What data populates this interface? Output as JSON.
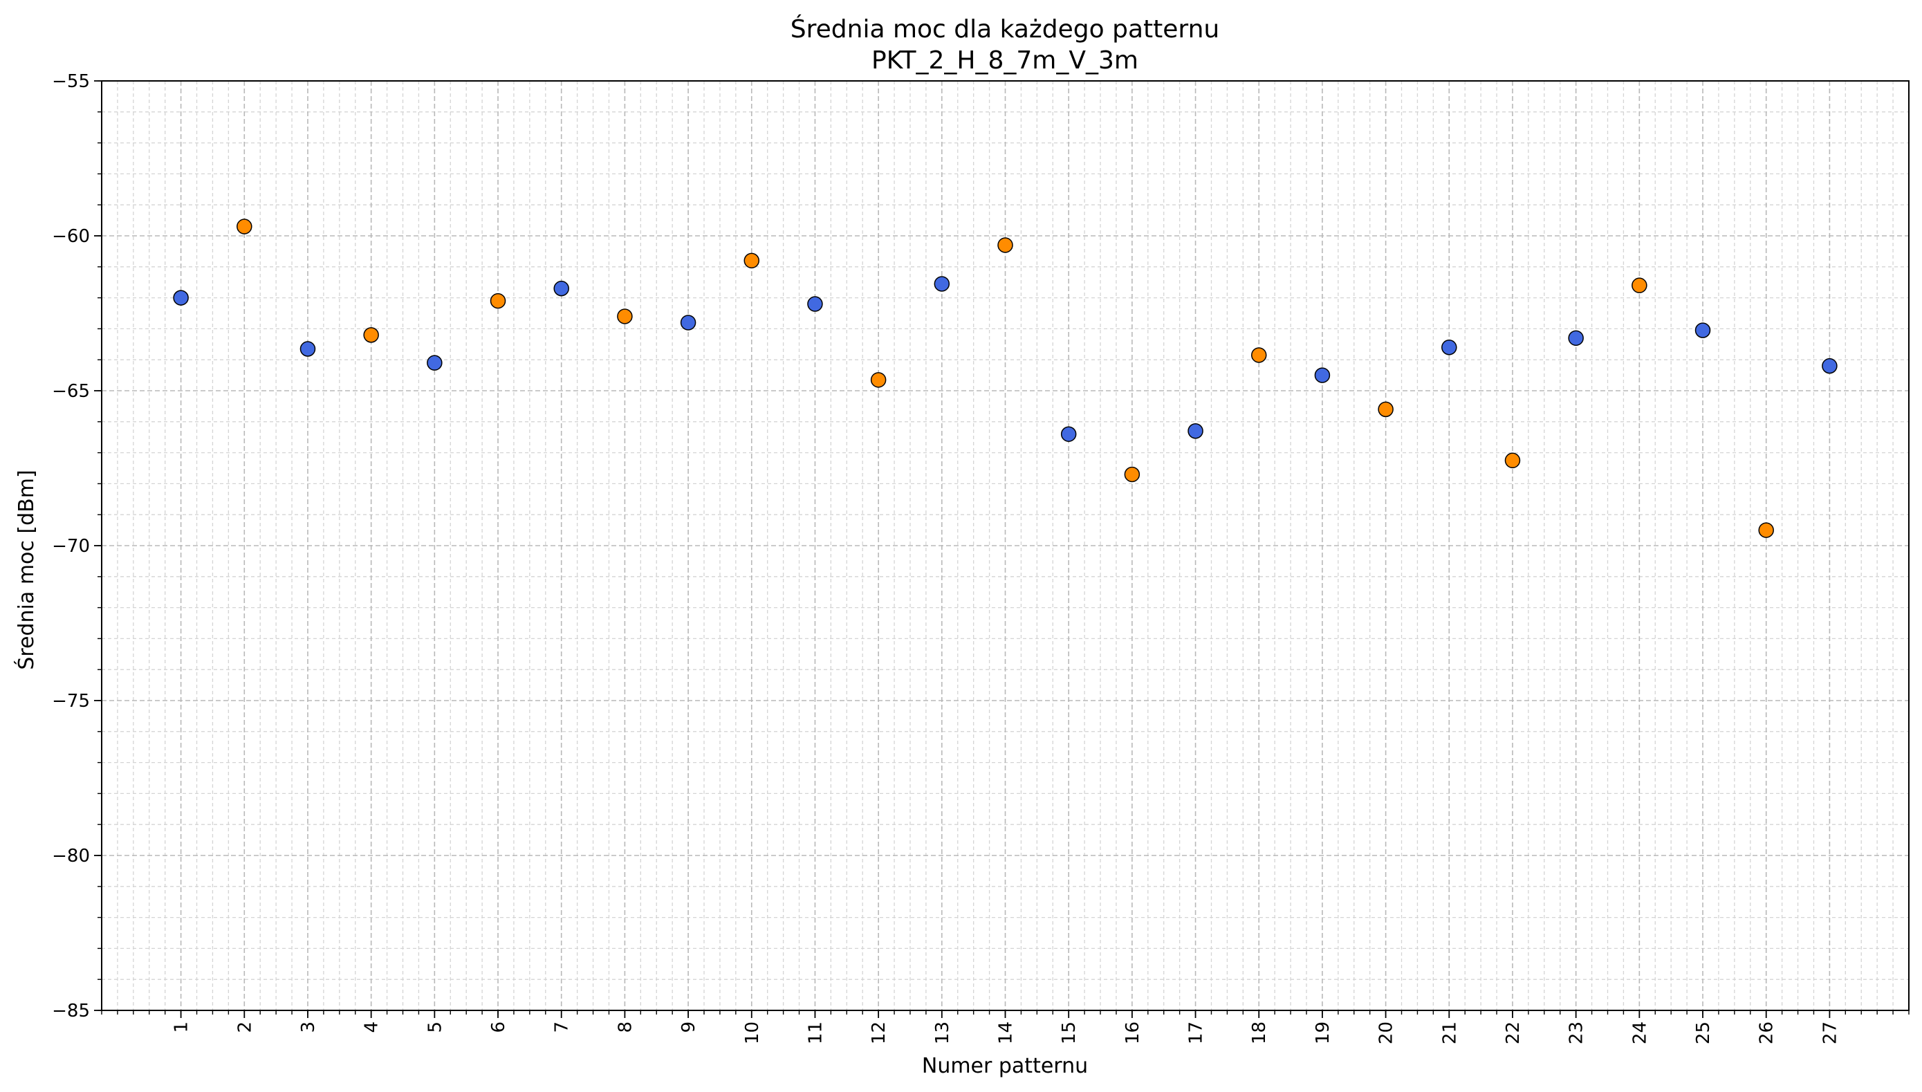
{
  "chart_data": {
    "type": "scatter",
    "title": "Średnia moc dla każdego patternu",
    "subtitle": "PKT_2_H_8_7m_V_3m",
    "xlabel": "Numer patternu",
    "ylabel": "Średnia moc [dBm]",
    "xlim": [
      -0.25,
      28.25
    ],
    "ylim": [
      -85,
      -55
    ],
    "x_ticks": [
      "1",
      "2",
      "3",
      "4",
      "5",
      "6",
      "7",
      "8",
      "9",
      "10",
      "11",
      "12",
      "13",
      "14",
      "15",
      "16",
      "17",
      "18",
      "19",
      "20",
      "21",
      "22",
      "23",
      "24",
      "25",
      "26",
      "27"
    ],
    "y_ticks": [
      "−85",
      "−80",
      "−75",
      "−70",
      "−65",
      "−60",
      "−55"
    ],
    "y_tick_values": [
      -85,
      -80,
      -75,
      -70,
      -65,
      -60,
      -55
    ],
    "grid": "on (major and minor, dashed)",
    "legend": "none",
    "colors": {
      "odd": "#4169e1",
      "even": "#ff8c00",
      "edge": "#000000"
    },
    "points": [
      {
        "x": 1,
        "y": -62.0
      },
      {
        "x": 2,
        "y": -59.7
      },
      {
        "x": 3,
        "y": -63.65
      },
      {
        "x": 4,
        "y": -63.2
      },
      {
        "x": 5,
        "y": -64.1
      },
      {
        "x": 6,
        "y": -62.1
      },
      {
        "x": 7,
        "y": -61.7
      },
      {
        "x": 8,
        "y": -62.6
      },
      {
        "x": 9,
        "y": -62.8
      },
      {
        "x": 10,
        "y": -60.8
      },
      {
        "x": 11,
        "y": -62.2
      },
      {
        "x": 12,
        "y": -64.65
      },
      {
        "x": 13,
        "y": -61.55
      },
      {
        "x": 14,
        "y": -60.3
      },
      {
        "x": 15,
        "y": -66.4
      },
      {
        "x": 16,
        "y": -67.7
      },
      {
        "x": 17,
        "y": -66.3
      },
      {
        "x": 18,
        "y": -63.85
      },
      {
        "x": 19,
        "y": -64.5
      },
      {
        "x": 20,
        "y": -65.6
      },
      {
        "x": 21,
        "y": -63.6
      },
      {
        "x": 22,
        "y": -67.25
      },
      {
        "x": 23,
        "y": -63.3
      },
      {
        "x": 24,
        "y": -61.6
      },
      {
        "x": 25,
        "y": -63.05
      },
      {
        "x": 26,
        "y": -69.5
      },
      {
        "x": 27,
        "y": -64.2
      }
    ]
  }
}
